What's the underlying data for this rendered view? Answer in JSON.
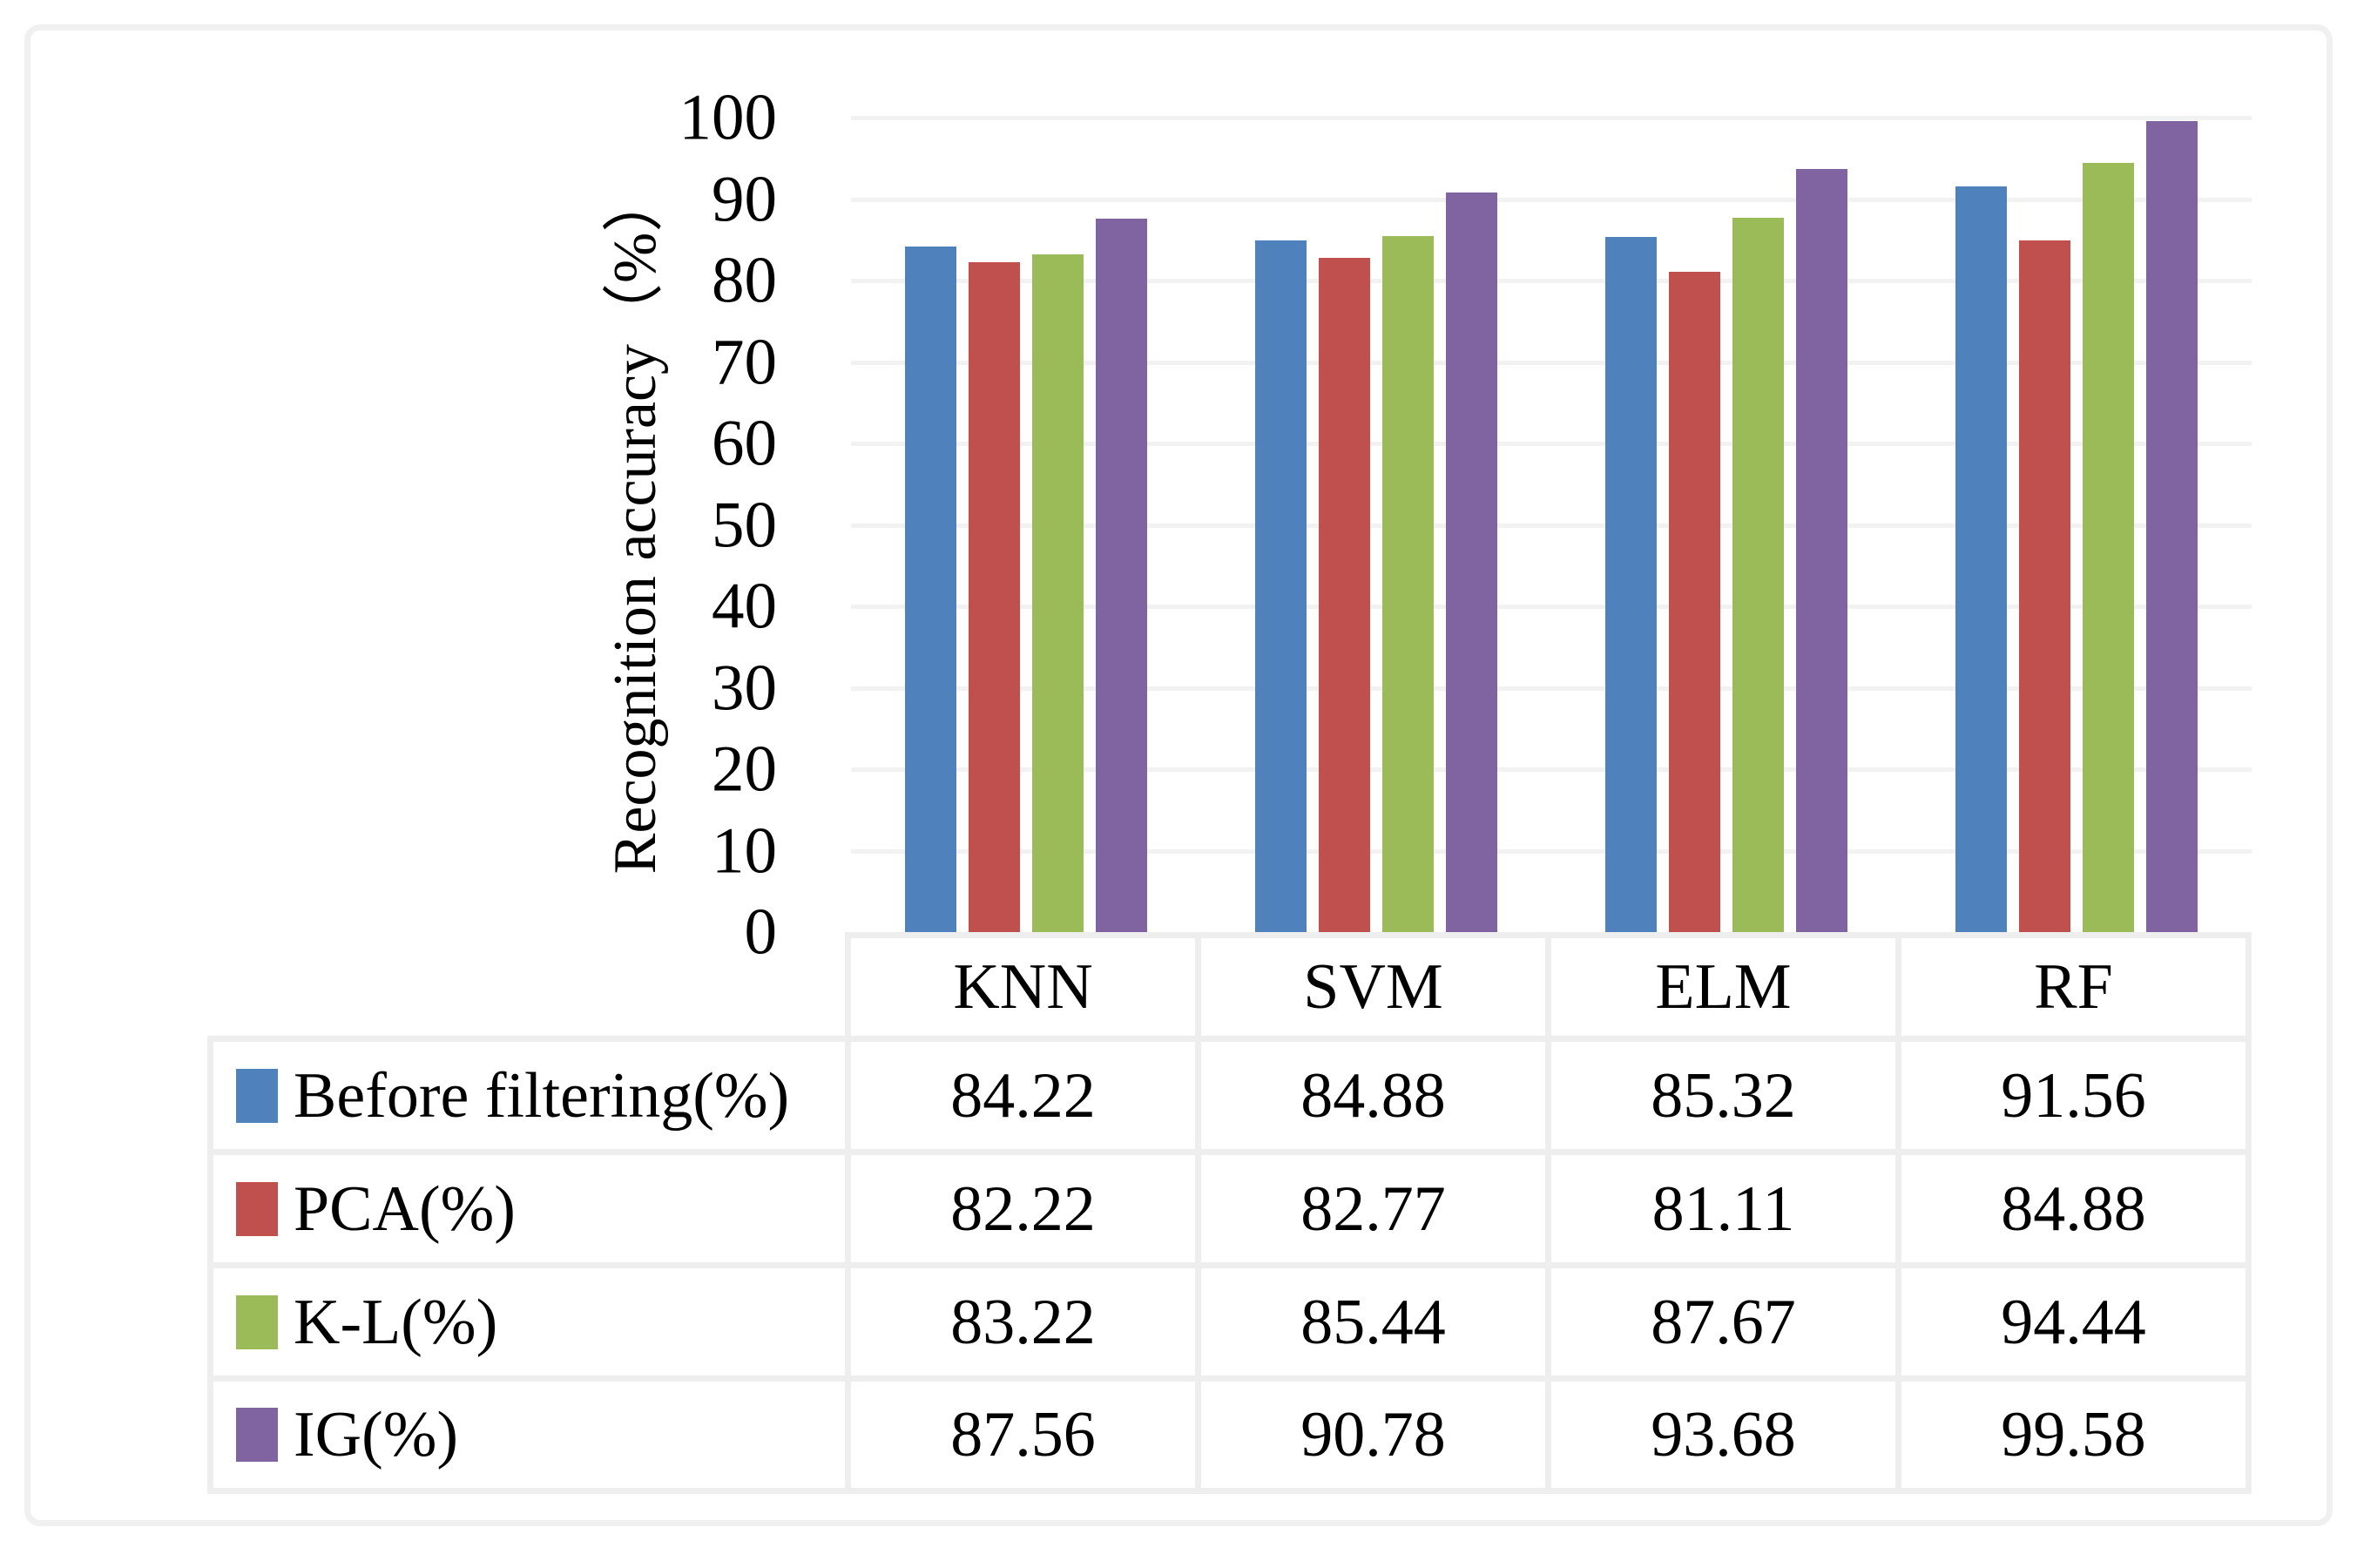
{
  "figure": {
    "y_axis": {
      "title": "Recognition accuracy（%）",
      "ticks": [
        "0",
        "10",
        "20",
        "30",
        "40",
        "50",
        "60",
        "70",
        "80",
        "90",
        "100"
      ]
    }
  },
  "chart_data": {
    "type": "bar",
    "title": "",
    "xlabel": "",
    "ylabel": "Recognition accuracy（%）",
    "ylim": [
      0,
      100
    ],
    "ytick_step": 10,
    "grid": true,
    "legend_position": "table-left",
    "categories": [
      "KNN",
      "SVM",
      "ELM",
      "RF"
    ],
    "series": [
      {
        "name": "Before filtering(%)",
        "color": "#4F81BD",
        "values": [
          84.22,
          84.88,
          85.32,
          91.56
        ]
      },
      {
        "name": "PCA(%)",
        "color": "#C0504D",
        "values": [
          82.22,
          82.77,
          81.11,
          84.88
        ]
      },
      {
        "name": "K-L(%)",
        "color": "#9BBB59",
        "values": [
          83.22,
          85.44,
          87.67,
          94.44
        ]
      },
      {
        "name": "IG(%)",
        "color": "#8064A2",
        "values": [
          87.56,
          90.78,
          93.68,
          99.58
        ]
      }
    ]
  },
  "table": {
    "header": [
      "",
      "KNN",
      "SVM",
      "ELM",
      "RF"
    ],
    "rows": [
      {
        "label": "Before filtering(%)",
        "color": "#4F81BD",
        "values": [
          "84.22",
          "84.88",
          "85.32",
          "91.56"
        ]
      },
      {
        "label": "PCA(%)",
        "color": "#C0504D",
        "values": [
          "82.22",
          "82.77",
          "81.11",
          "84.88"
        ]
      },
      {
        "label": "K-L(%)",
        "color": "#9BBB59",
        "values": [
          "83.22",
          "85.44",
          "87.67",
          "94.44"
        ]
      },
      {
        "label": "IG(%)",
        "color": "#8064A2",
        "values": [
          "87.56",
          "90.78",
          "93.68",
          "99.58"
        ]
      }
    ]
  }
}
